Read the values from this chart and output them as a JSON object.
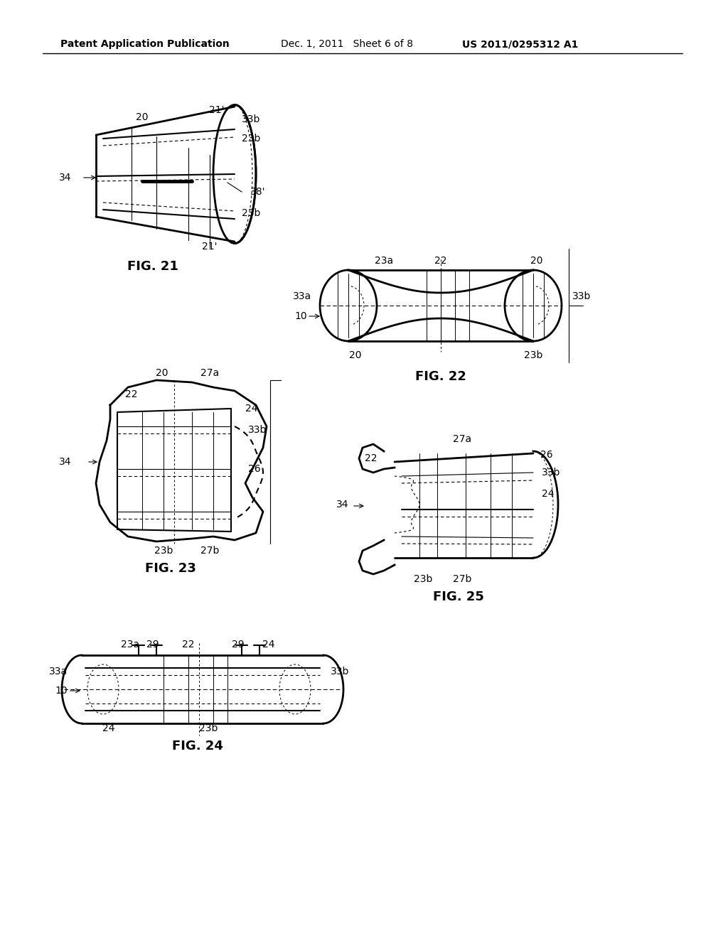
{
  "header_left": "Patent Application Publication",
  "header_center": "Dec. 1, 2011   Sheet 6 of 8",
  "header_right": "US 2011/0295312 A1",
  "fig21_label": "FIG. 21",
  "fig22_label": "FIG. 22",
  "fig23_label": "FIG. 23",
  "fig24_label": "FIG. 24",
  "fig25_label": "FIG. 25",
  "bg_color": "#ffffff",
  "line_color": "#000000",
  "font_size_header": 11,
  "font_size_label": 12,
  "font_size_ref": 11
}
